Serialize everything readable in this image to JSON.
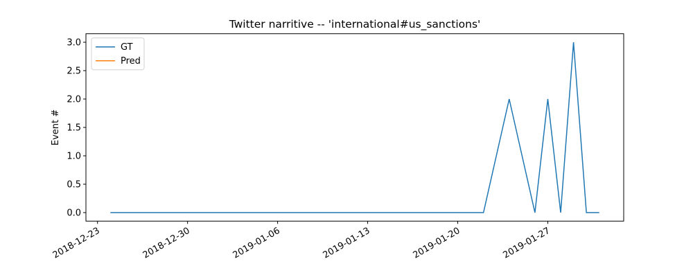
{
  "chart_data": {
    "type": "line",
    "title": "Twitter narritive -- 'international#us_sanctions'",
    "y_label": "Event #",
    "x": [
      "2018-12-24",
      "2018-12-25",
      "2018-12-26",
      "2018-12-27",
      "2018-12-28",
      "2018-12-29",
      "2018-12-30",
      "2018-12-31",
      "2019-01-01",
      "2019-01-02",
      "2019-01-03",
      "2019-01-04",
      "2019-01-05",
      "2019-01-06",
      "2019-01-07",
      "2019-01-08",
      "2019-01-09",
      "2019-01-10",
      "2019-01-11",
      "2019-01-12",
      "2019-01-13",
      "2019-01-14",
      "2019-01-15",
      "2019-01-16",
      "2019-01-17",
      "2019-01-18",
      "2019-01-19",
      "2019-01-20",
      "2019-01-21",
      "2019-01-22",
      "2019-01-23",
      "2019-01-24",
      "2019-01-25",
      "2019-01-26",
      "2019-01-27",
      "2019-01-28",
      "2019-01-29",
      "2019-01-30",
      "2019-01-31"
    ],
    "series": [
      {
        "name": "GT",
        "color": "#1f77b4",
        "values": [
          0,
          0,
          0,
          0,
          0,
          0,
          0,
          0,
          0,
          0,
          0,
          0,
          0,
          0,
          0,
          0,
          0,
          0,
          0,
          0,
          0,
          0,
          0,
          0,
          0,
          0,
          0,
          0,
          0,
          0,
          1,
          2,
          1,
          0,
          2,
          0,
          3,
          0,
          0
        ]
      },
      {
        "name": "Pred",
        "color": "#ff7f0e",
        "values": [
          null,
          null,
          null,
          null,
          null,
          null,
          null,
          null,
          null,
          null,
          null,
          null,
          null,
          null,
          null,
          null,
          null,
          null,
          null,
          null,
          null,
          null,
          null,
          null,
          null,
          null,
          null,
          null,
          null,
          null,
          null,
          null,
          null,
          null,
          null,
          null,
          null,
          null,
          null
        ]
      }
    ],
    "xlim": [
      "2018-12-22T02:24:00Z",
      "2019-02-01T21:36:00Z"
    ],
    "xticks": [
      "2018-12-23",
      "2018-12-30",
      "2019-01-06",
      "2019-01-13",
      "2019-01-20",
      "2019-01-27"
    ],
    "ylim": [
      -0.15,
      3.15
    ],
    "yticks": [
      {
        "value": 0,
        "label": "0.0"
      },
      {
        "value": 0.5,
        "label": "0.5"
      },
      {
        "value": 1,
        "label": "1.0"
      },
      {
        "value": 1.5,
        "label": "1.5"
      },
      {
        "value": 2,
        "label": "2.0"
      },
      {
        "value": 2.5,
        "label": "2.5"
      },
      {
        "value": 3,
        "label": "3.0"
      }
    ],
    "legend": "upper left"
  }
}
